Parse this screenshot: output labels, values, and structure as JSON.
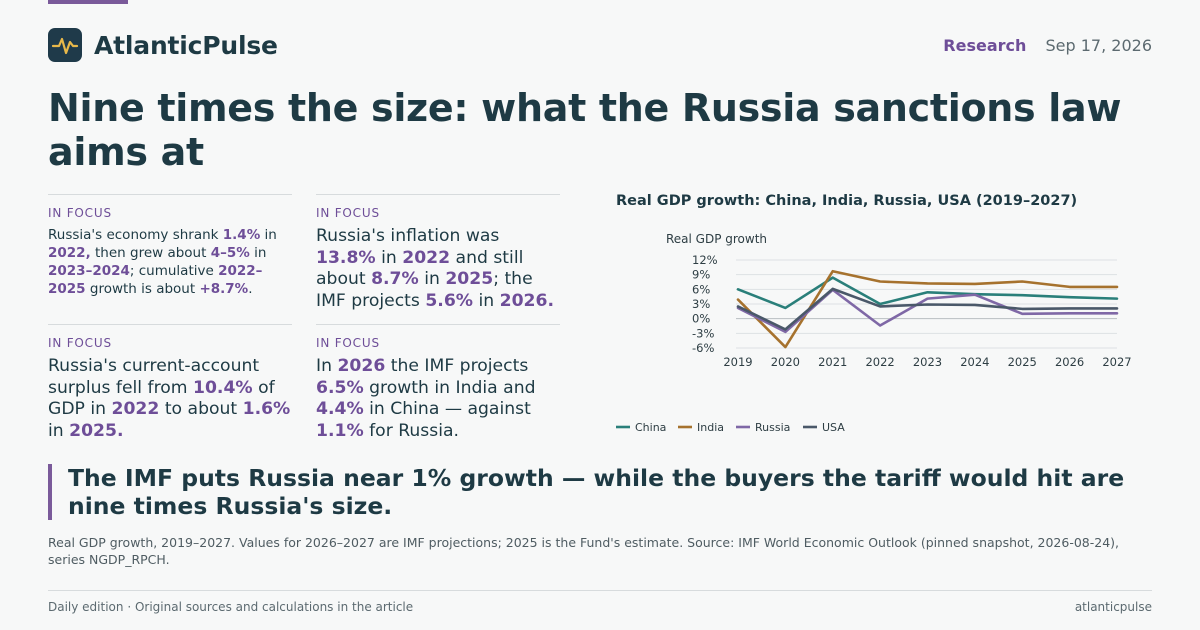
{
  "brand": {
    "name": "AtlanticPulse"
  },
  "header": {
    "section": "Research",
    "date": "Sep 17, 2026"
  },
  "headline": "Nine times the size: what the Russia sanctions law aims at",
  "cards": [
    {
      "label": "IN FOCUS",
      "parts": [
        {
          "t": "Russia's economy shrank "
        },
        {
          "t": "1.4%",
          "h": true
        },
        {
          "t": " in "
        },
        {
          "t": "2022,",
          "h": true
        },
        {
          "t": " then grew about "
        },
        {
          "t": "4–5%",
          "h": true
        },
        {
          "t": " in "
        },
        {
          "t": "2023–2024",
          "h": true
        },
        {
          "t": "; cumulative "
        },
        {
          "t": "2022–2025",
          "h": true
        },
        {
          "t": " growth is about "
        },
        {
          "t": "+8.7%",
          "h": true
        },
        {
          "t": "."
        }
      ]
    },
    {
      "label": "IN FOCUS",
      "parts": [
        {
          "t": "Russia's inflation was "
        },
        {
          "t": "13.8%",
          "h": true
        },
        {
          "t": " in "
        },
        {
          "t": "2022",
          "h": true
        },
        {
          "t": " and still about "
        },
        {
          "t": "8.7%",
          "h": true
        },
        {
          "t": " in "
        },
        {
          "t": "2025",
          "h": true
        },
        {
          "t": "; the IMF projects "
        },
        {
          "t": "5.6%",
          "h": true
        },
        {
          "t": " in "
        },
        {
          "t": "2026.",
          "h": true
        }
      ]
    },
    {
      "label": "IN FOCUS",
      "parts": [
        {
          "t": "Russia's current-account surplus fell from "
        },
        {
          "t": "10.4%",
          "h": true
        },
        {
          "t": " of GDP in "
        },
        {
          "t": "2022",
          "h": true
        },
        {
          "t": " to about "
        },
        {
          "t": "1.6%",
          "h": true
        },
        {
          "t": " in "
        },
        {
          "t": "2025.",
          "h": true
        }
      ]
    },
    {
      "label": "IN FOCUS",
      "parts": [
        {
          "t": "In "
        },
        {
          "t": "2026",
          "h": true
        },
        {
          "t": " the IMF projects "
        },
        {
          "t": "6.5%",
          "h": true
        },
        {
          "t": " growth in India and "
        },
        {
          "t": "4.4%",
          "h": true
        },
        {
          "t": " in China — against "
        },
        {
          "t": "1.1%",
          "h": true
        },
        {
          "t": " for Russia."
        }
      ]
    }
  ],
  "chart_data": {
    "type": "line",
    "title": "Real GDP growth: China, India, Russia, USA (2019–2027)",
    "xlabel": "",
    "ylabel": "Real GDP growth",
    "x": [
      2019,
      2020,
      2021,
      2022,
      2023,
      2024,
      2025,
      2026,
      2027
    ],
    "ylim": [
      -6,
      12
    ],
    "yticks": [
      "12%",
      "9%",
      "6%",
      "3%",
      "0%",
      "-3%",
      "-6%"
    ],
    "grid": true,
    "legend_position": "bottom-left",
    "series": [
      {
        "name": "China",
        "color": "#2a7f7a",
        "values": [
          6.0,
          2.2,
          8.4,
          3.0,
          5.4,
          5.0,
          4.8,
          4.4,
          4.1
        ]
      },
      {
        "name": "India",
        "color": "#a6722e",
        "values": [
          3.9,
          -5.8,
          9.7,
          7.6,
          7.2,
          7.1,
          7.6,
          6.5,
          6.5
        ]
      },
      {
        "name": "Russia",
        "color": "#7f68a6",
        "values": [
          2.2,
          -2.7,
          5.9,
          -1.4,
          4.1,
          4.9,
          1.0,
          1.1,
          1.1
        ]
      },
      {
        "name": "USA",
        "color": "#4a5869",
        "values": [
          2.5,
          -2.2,
          6.1,
          2.5,
          2.9,
          2.8,
          2.0,
          2.1,
          2.1
        ]
      }
    ]
  },
  "pull_quote": "The IMF puts Russia near 1% growth — while the buyers the tariff would hit are nine times Russia's size.",
  "note": "Real GDP growth, 2019–2027. Values for 2026–2027 are IMF projections; 2025 is the Fund's estimate. Source: IMF World Economic Outlook (pinned snapshot, 2026-08-24), series NGDP_RPCH.",
  "footer": {
    "left": "Daily edition · Original sources and calculations in the article",
    "right": "atlanticpulse"
  },
  "colors": {
    "accent": "#6e4e98",
    "ink": "#1e3a44",
    "logo_bg": "#1f3a4a",
    "logo_pulse": "#e8b84a"
  }
}
